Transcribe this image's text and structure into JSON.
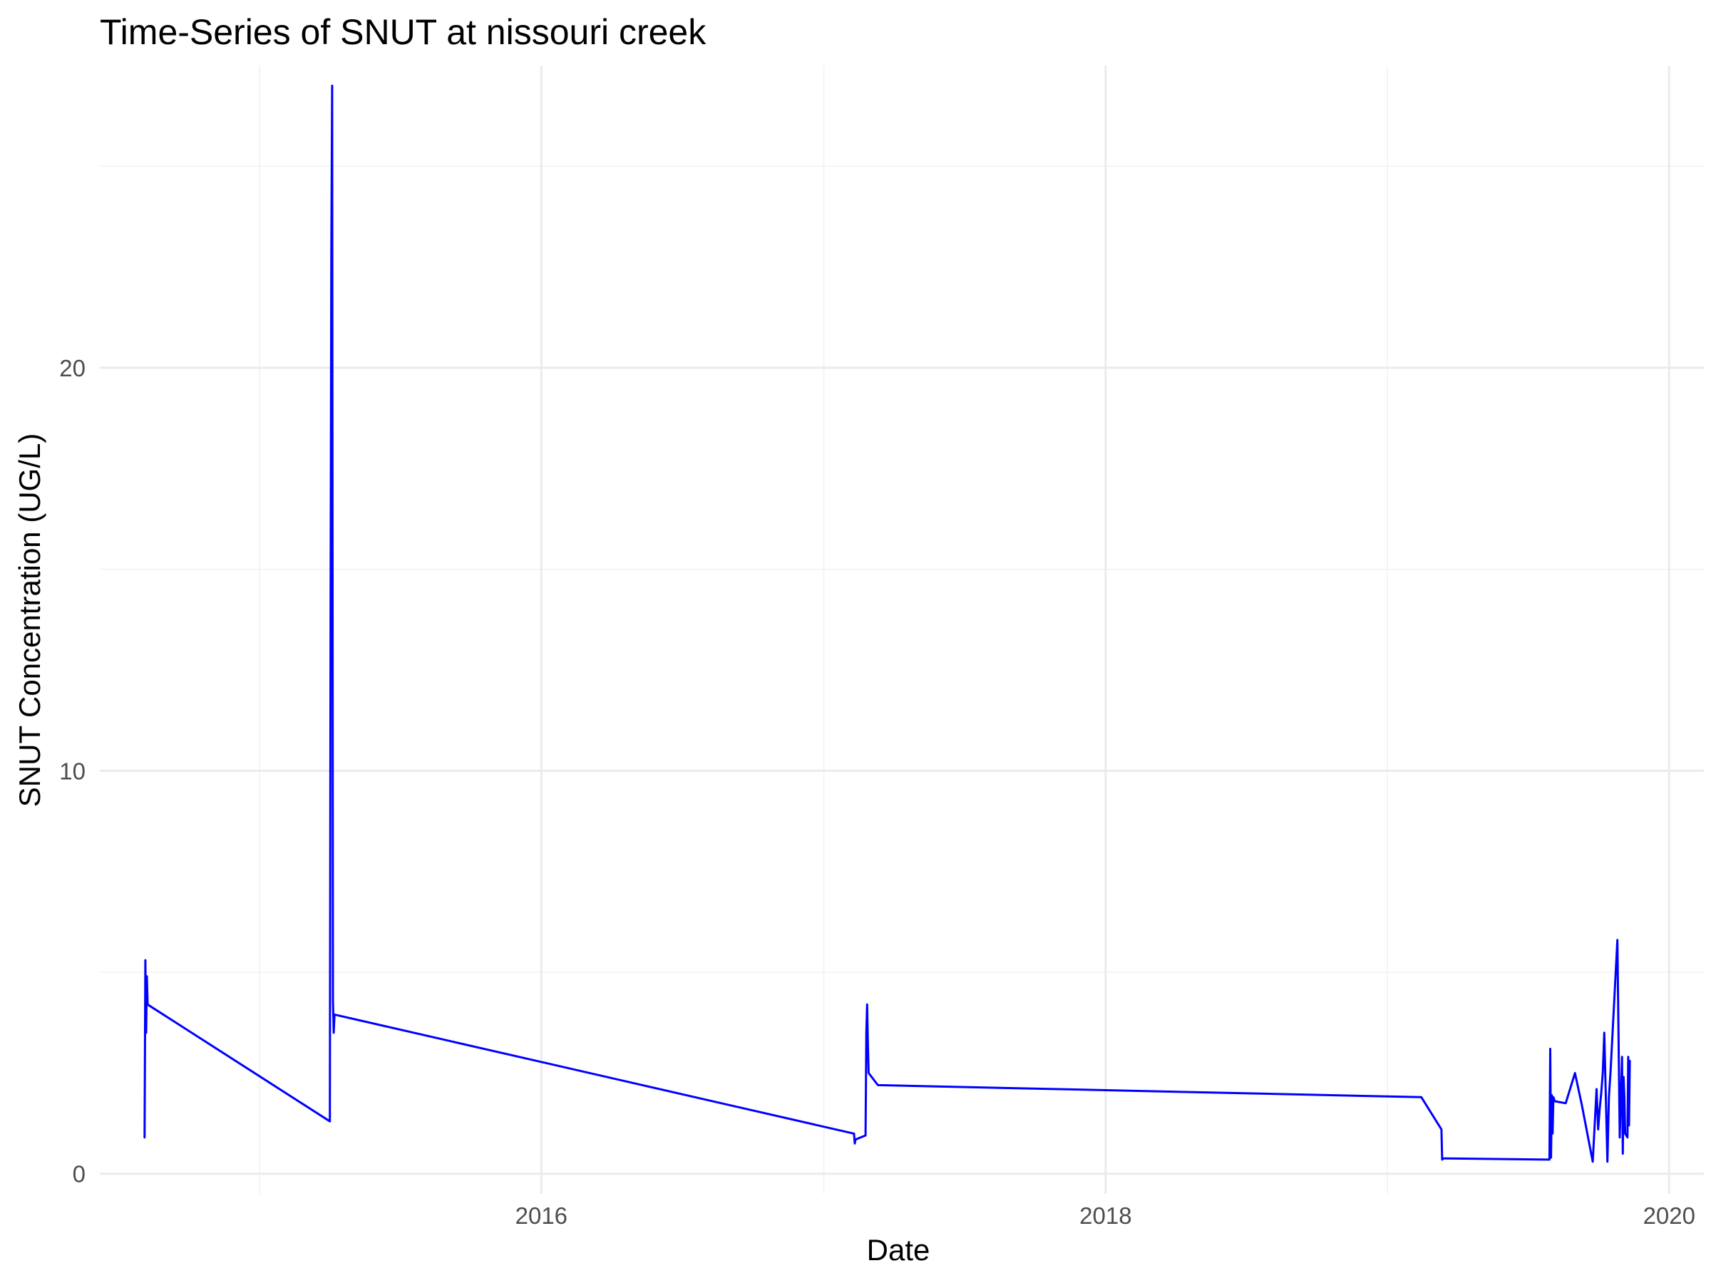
{
  "chart_data": {
    "type": "line",
    "title": "Time-Series of SNUT at nissouri creek",
    "xlabel": "Date",
    "ylabel": "SNUT Concentration (UG/L)",
    "x_axis_type": "date",
    "xlim": [
      "2014-06-08",
      "2020-02-15"
    ],
    "ylim": [
      -0.5,
      27.5
    ],
    "x_ticks": [
      {
        "value": "2016-01-01",
        "label": "2016"
      },
      {
        "value": "2018-01-01",
        "label": "2018"
      },
      {
        "value": "2020-01-01",
        "label": "2020"
      }
    ],
    "x_minor_ticks": [
      "2015-01-01",
      "2017-01-01",
      "2019-01-01"
    ],
    "y_ticks": [
      {
        "value": 0,
        "label": "0"
      },
      {
        "value": 10,
        "label": "10"
      },
      {
        "value": 20,
        "label": "20"
      }
    ],
    "y_minor_ticks": [
      5,
      15,
      25
    ],
    "grid": true,
    "legend": "none",
    "series": [
      {
        "color": "#0000ff",
        "x": [
          "2014-08-05",
          "2014-08-06",
          "2014-08-07",
          "2014-08-08",
          "2014-08-09",
          "2015-04-02",
          "2015-04-03",
          "2015-04-04",
          "2015-04-05",
          "2015-04-06",
          "2015-04-07",
          "2015-04-08",
          "2017-02-08",
          "2017-02-09",
          "2017-02-10",
          "2017-02-11",
          "2017-02-24",
          "2017-02-25",
          "2017-02-26",
          "2017-02-27",
          "2017-02-28",
          "2017-03-12",
          "2019-02-14",
          "2019-03-12",
          "2019-03-13",
          "2019-03-14",
          "2019-07-30",
          "2019-07-31",
          "2019-08-01",
          "2019-08-02",
          "2019-08-03",
          "2019-08-04",
          "2019-08-05",
          "2019-08-06",
          "2019-08-20",
          "2019-09-01",
          "2019-09-10",
          "2019-09-24",
          "2019-09-29",
          "2019-10-01",
          "2019-10-03",
          "2019-10-05",
          "2019-10-07",
          "2019-10-09",
          "2019-10-13",
          "2019-10-15",
          "2019-10-17",
          "2019-10-26",
          "2019-10-29",
          "2019-11-01",
          "2019-11-02",
          "2019-11-03",
          "2019-11-04",
          "2019-11-05",
          "2019-11-08",
          "2019-11-09",
          "2019-11-10",
          "2019-11-11"
        ],
        "y": [
          0.9,
          5.3,
          3.5,
          4.9,
          4.2,
          1.3,
          14.0,
          23.0,
          27.0,
          4.3,
          3.5,
          3.95,
          1.0,
          1.0,
          0.75,
          0.85,
          0.95,
          3.5,
          4.2,
          3.2,
          2.5,
          2.2,
          1.9,
          1.1,
          0.35,
          0.38,
          0.35,
          3.1,
          0.4,
          1.95,
          1.0,
          1.9,
          1.85,
          1.8,
          1.75,
          2.5,
          1.7,
          0.3,
          2.1,
          1.1,
          1.6,
          2.0,
          2.5,
          3.5,
          0.3,
          1.9,
          2.5,
          5.8,
          0.9,
          2.9,
          0.5,
          2.4,
          1.9,
          1.0,
          0.9,
          2.9,
          1.2,
          2.8
        ]
      }
    ]
  }
}
